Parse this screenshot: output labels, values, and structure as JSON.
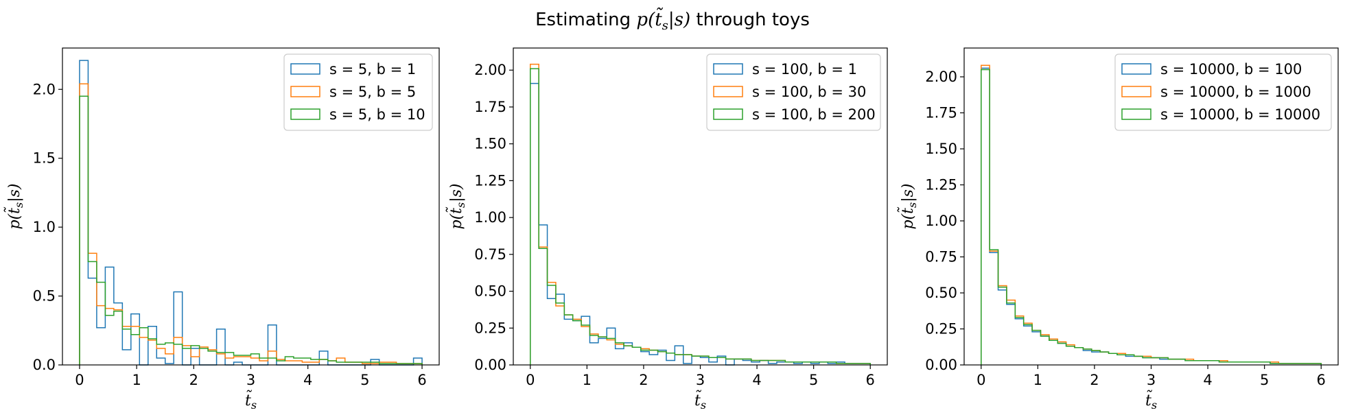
{
  "figure": {
    "title_pre": "Estimating ",
    "title_math": "p(t̃",
    "title_sub": "s",
    "title_math2": "|s)",
    "title_post": " through toys"
  },
  "colors": {
    "series": [
      "#1f77b4",
      "#ff7f0e",
      "#2ca02c"
    ]
  },
  "chart_data": [
    {
      "type": "histogram",
      "xlabel_main": "t̃",
      "xlabel_sub": "s",
      "ylabel_pre": "p(t̃",
      "ylabel_sub": "s",
      "ylabel_post": "|s)",
      "xlim": [
        -0.3,
        6.3
      ],
      "ylim": [
        0,
        2.3
      ],
      "xticks": [
        0,
        1,
        2,
        3,
        4,
        5,
        6
      ],
      "xtick_labels": [
        "0",
        "1",
        "2",
        "3",
        "4",
        "5",
        "6"
      ],
      "yticks": [
        0,
        0.5,
        1.0,
        1.5,
        2.0
      ],
      "ytick_labels": [
        "0.0",
        "0.5",
        "1.0",
        "1.5",
        "2.0"
      ],
      "bin_edges_range": [
        0,
        6
      ],
      "bin_count": 40,
      "legend_position": "upper-right",
      "series": [
        {
          "name": "s = 5, b = 1",
          "values": [
            2.21,
            0.63,
            0.27,
            0.71,
            0.45,
            0.11,
            0.37,
            0.0,
            0.28,
            0.05,
            0.01,
            0.53,
            0.0,
            0.12,
            0.0,
            0.0,
            0.26,
            0.0,
            0.02,
            0.0,
            0.0,
            0.0,
            0.29,
            0.0,
            0.0,
            0.0,
            0.0,
            0.0,
            0.1,
            0.0,
            0.0,
            0.0,
            0.0,
            0.0,
            0.04,
            0.0,
            0.0,
            0.0,
            0.0,
            0.05
          ]
        },
        {
          "name": "s = 5, b = 5",
          "values": [
            2.04,
            0.81,
            0.43,
            0.41,
            0.4,
            0.28,
            0.28,
            0.2,
            0.18,
            0.12,
            0.08,
            0.2,
            0.14,
            0.06,
            0.13,
            0.11,
            0.08,
            0.05,
            0.06,
            0.06,
            0.05,
            0.03,
            0.1,
            0.04,
            0.03,
            0.03,
            0.02,
            0.02,
            0.04,
            0.03,
            0.05,
            0.02,
            0.02,
            0.01,
            0.01,
            0.02,
            0.02,
            0.01,
            0.01,
            0.01
          ]
        },
        {
          "name": "s = 5, b = 10",
          "values": [
            1.95,
            0.75,
            0.6,
            0.36,
            0.39,
            0.26,
            0.22,
            0.27,
            0.19,
            0.15,
            0.16,
            0.15,
            0.12,
            0.14,
            0.12,
            0.1,
            0.09,
            0.09,
            0.07,
            0.07,
            0.08,
            0.05,
            0.05,
            0.03,
            0.06,
            0.05,
            0.05,
            0.04,
            0.04,
            0.03,
            0.02,
            0.02,
            0.02,
            0.02,
            0.02,
            0.01,
            0.01,
            0.01,
            0.01,
            0.01
          ]
        }
      ]
    },
    {
      "type": "histogram",
      "xlabel_main": "t̃",
      "xlabel_sub": "s",
      "ylabel_pre": "p(t̃",
      "ylabel_sub": "s",
      "ylabel_post": "|s)",
      "xlim": [
        -0.3,
        6.3
      ],
      "ylim": [
        0,
        2.15
      ],
      "xticks": [
        0,
        1,
        2,
        3,
        4,
        5,
        6
      ],
      "xtick_labels": [
        "0",
        "1",
        "2",
        "3",
        "4",
        "5",
        "6"
      ],
      "yticks": [
        0,
        0.25,
        0.5,
        0.75,
        1.0,
        1.25,
        1.5,
        1.75,
        2.0
      ],
      "ytick_labels": [
        "0.00",
        "0.25",
        "0.50",
        "0.75",
        "1.00",
        "1.25",
        "1.50",
        "1.75",
        "2.00"
      ],
      "bin_edges_range": [
        0,
        6
      ],
      "bin_count": 40,
      "legend_position": "upper-right",
      "series": [
        {
          "name": "s = 100, b = 1",
          "values": [
            1.91,
            0.95,
            0.45,
            0.48,
            0.31,
            0.3,
            0.33,
            0.15,
            0.18,
            0.25,
            0.11,
            0.15,
            0.12,
            0.09,
            0.07,
            0.1,
            0.03,
            0.13,
            0.01,
            0.06,
            0.05,
            0.02,
            0.06,
            0.0,
            0.04,
            0.03,
            0.02,
            0.03,
            0.01,
            0.02,
            0.02,
            0.01,
            0.02,
            0.01,
            0.02,
            0.01,
            0.02,
            0.01,
            0.01,
            0.01
          ]
        },
        {
          "name": "s = 100, b = 30",
          "values": [
            2.04,
            0.8,
            0.56,
            0.4,
            0.34,
            0.31,
            0.26,
            0.21,
            0.19,
            0.17,
            0.14,
            0.13,
            0.12,
            0.11,
            0.1,
            0.09,
            0.08,
            0.07,
            0.07,
            0.06,
            0.06,
            0.05,
            0.05,
            0.04,
            0.04,
            0.04,
            0.03,
            0.03,
            0.03,
            0.03,
            0.02,
            0.02,
            0.02,
            0.02,
            0.02,
            0.02,
            0.01,
            0.01,
            0.01,
            0.01
          ]
        },
        {
          "name": "s = 100, b = 200",
          "values": [
            2.01,
            0.79,
            0.54,
            0.42,
            0.34,
            0.3,
            0.27,
            0.2,
            0.19,
            0.18,
            0.15,
            0.13,
            0.12,
            0.1,
            0.1,
            0.09,
            0.08,
            0.07,
            0.07,
            0.06,
            0.06,
            0.05,
            0.05,
            0.04,
            0.04,
            0.04,
            0.03,
            0.03,
            0.03,
            0.03,
            0.02,
            0.02,
            0.02,
            0.02,
            0.02,
            0.02,
            0.01,
            0.01,
            0.01,
            0.01
          ]
        }
      ]
    },
    {
      "type": "histogram",
      "xlabel_main": "t̃",
      "xlabel_sub": "s",
      "ylabel_pre": "p(t̃",
      "ylabel_sub": "s",
      "ylabel_post": "|s)",
      "xlim": [
        -0.3,
        6.3
      ],
      "ylim": [
        0,
        2.2
      ],
      "xticks": [
        0,
        1,
        2,
        3,
        4,
        5,
        6
      ],
      "xtick_labels": [
        "0",
        "1",
        "2",
        "3",
        "4",
        "5",
        "6"
      ],
      "yticks": [
        0,
        0.25,
        0.5,
        0.75,
        1.0,
        1.25,
        1.5,
        1.75,
        2.0
      ],
      "ytick_labels": [
        "0.00",
        "0.25",
        "0.50",
        "0.75",
        "1.00",
        "1.25",
        "1.50",
        "1.75",
        "2.00"
      ],
      "bin_edges_range": [
        0,
        6
      ],
      "bin_count": 40,
      "legend_position": "upper-right",
      "series": [
        {
          "name": "s = 10000, b = 100",
          "values": [
            2.06,
            0.78,
            0.52,
            0.42,
            0.32,
            0.27,
            0.23,
            0.2,
            0.17,
            0.15,
            0.13,
            0.12,
            0.1,
            0.09,
            0.09,
            0.08,
            0.07,
            0.06,
            0.06,
            0.05,
            0.05,
            0.04,
            0.04,
            0.04,
            0.03,
            0.03,
            0.03,
            0.03,
            0.02,
            0.02,
            0.02,
            0.02,
            0.02,
            0.02,
            0.01,
            0.01,
            0.01,
            0.01,
            0.01,
            0.01
          ]
        },
        {
          "name": "s = 10000, b = 1000",
          "values": [
            2.08,
            0.79,
            0.55,
            0.45,
            0.34,
            0.29,
            0.24,
            0.21,
            0.18,
            0.16,
            0.14,
            0.12,
            0.11,
            0.1,
            0.09,
            0.08,
            0.08,
            0.07,
            0.06,
            0.06,
            0.05,
            0.05,
            0.04,
            0.04,
            0.04,
            0.03,
            0.03,
            0.03,
            0.03,
            0.02,
            0.02,
            0.02,
            0.02,
            0.02,
            0.02,
            0.01,
            0.01,
            0.01,
            0.01,
            0.01
          ]
        },
        {
          "name": "s = 10000, b = 10000",
          "values": [
            2.05,
            0.8,
            0.54,
            0.43,
            0.33,
            0.28,
            0.24,
            0.2,
            0.17,
            0.15,
            0.13,
            0.12,
            0.11,
            0.1,
            0.09,
            0.08,
            0.07,
            0.07,
            0.06,
            0.05,
            0.05,
            0.05,
            0.04,
            0.04,
            0.03,
            0.03,
            0.03,
            0.03,
            0.02,
            0.02,
            0.02,
            0.02,
            0.02,
            0.02,
            0.01,
            0.01,
            0.01,
            0.01,
            0.01,
            0.01
          ]
        }
      ]
    }
  ]
}
